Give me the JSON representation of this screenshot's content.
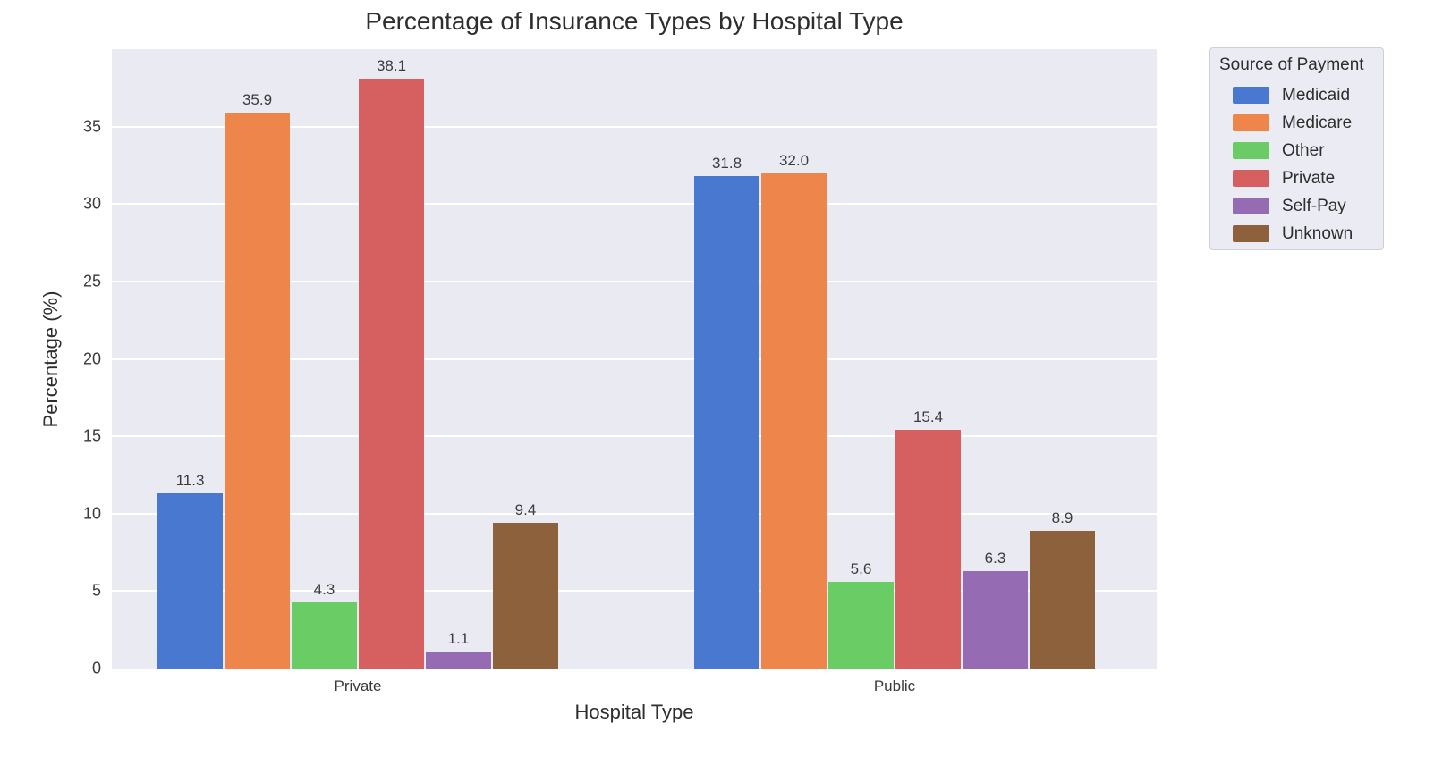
{
  "chart_data": {
    "type": "bar",
    "title": "Percentage of Insurance Types by Hospital Type",
    "xlabel": "Hospital Type",
    "ylabel": "Percentage (%)",
    "categories": [
      "Private",
      "Public"
    ],
    "series": [
      {
        "name": "Medicaid",
        "color": "#4878d0",
        "values": [
          11.3,
          31.8
        ]
      },
      {
        "name": "Medicare",
        "color": "#ee854a",
        "values": [
          35.9,
          32.0
        ]
      },
      {
        "name": "Other",
        "color": "#6acc64",
        "values": [
          4.3,
          5.6
        ]
      },
      {
        "name": "Private",
        "color": "#d65f5f",
        "values": [
          38.1,
          15.4
        ]
      },
      {
        "name": "Self-Pay",
        "color": "#956cb4",
        "values": [
          1.1,
          6.3
        ]
      },
      {
        "name": "Unknown",
        "color": "#8c613c",
        "values": [
          9.4,
          8.9
        ]
      }
    ],
    "legend_title": "Source of Payment",
    "legend_position": "upper right, outside plot",
    "yticks": [
      0,
      5,
      10,
      15,
      20,
      25,
      30,
      35
    ],
    "ylim": [
      0,
      40
    ],
    "grid": true,
    "bar_labels_decimals": 1,
    "plot_background": "#eaeaf2",
    "gridline_color": "#ffffff"
  }
}
